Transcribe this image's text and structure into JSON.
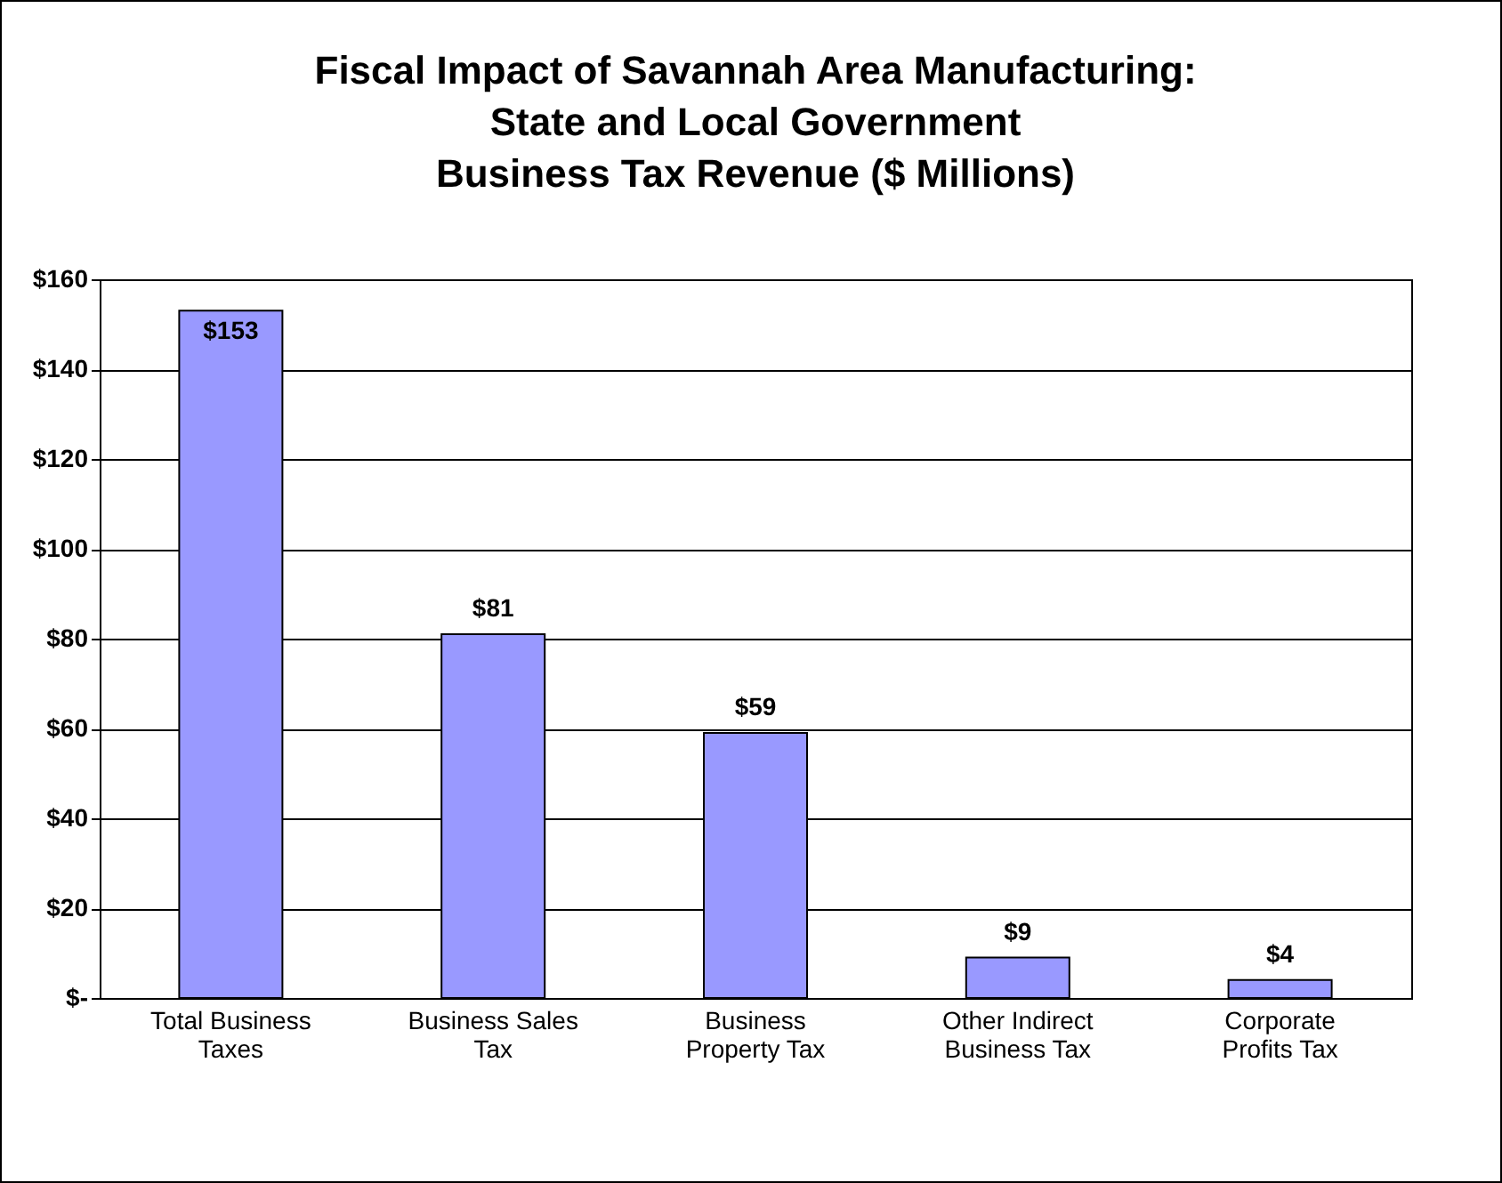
{
  "chart_data": {
    "type": "bar",
    "title": "Fiscal Impact of Savannah Area Manufacturing:\nState and Local Government\nBusiness Tax Revenue ($ Millions)",
    "categories": [
      "Total Business Taxes",
      "Business Sales Tax",
      "Business Property Tax",
      "Other Indirect Business Tax",
      "Corporate Profits Tax"
    ],
    "values": [
      153,
      81,
      59,
      9,
      4
    ],
    "value_labels": [
      "$153",
      "$81",
      "$59",
      "$9",
      "$4"
    ],
    "color": "#9999ff",
    "ylim": [
      0,
      160
    ],
    "yticks": [
      {
        "value": 0,
        "label": "$-"
      },
      {
        "value": 20,
        "label": "$20"
      },
      {
        "value": 40,
        "label": "$40"
      },
      {
        "value": 60,
        "label": "$60"
      },
      {
        "value": 80,
        "label": "$80"
      },
      {
        "value": 100,
        "label": "$100"
      },
      {
        "value": 120,
        "label": "$120"
      },
      {
        "value": 140,
        "label": "$140"
      },
      {
        "value": 160,
        "label": "$160"
      }
    ],
    "grid": "y"
  }
}
